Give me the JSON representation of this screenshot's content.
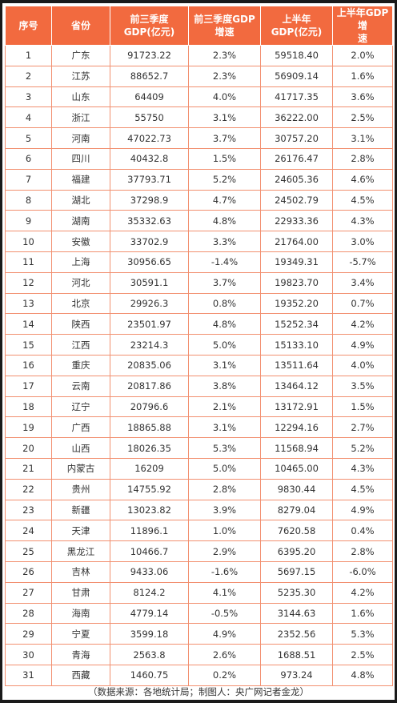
{
  "table": {
    "headers": [
      "序号",
      "省份",
      "前三季度\nGDP(亿元)",
      "前三季度GDP\n增速",
      "上半年\nGDP(亿元)",
      "上半年GDP增\n速"
    ],
    "rows": [
      [
        "1",
        "广东",
        "91723.22",
        "2.3%",
        "59518.40",
        "2.0%"
      ],
      [
        "2",
        "江苏",
        "88652.7",
        "2.3%",
        "56909.14",
        "1.6%"
      ],
      [
        "3",
        "山东",
        "64409",
        "4.0%",
        "41717.35",
        "3.6%"
      ],
      [
        "4",
        "浙江",
        "55750",
        "3.1%",
        "36222.00",
        "2.5%"
      ],
      [
        "5",
        "河南",
        "47022.73",
        "3.7%",
        "30757.20",
        "3.1%"
      ],
      [
        "6",
        "四川",
        "40432.8",
        "1.5%",
        "26176.47",
        "2.8%"
      ],
      [
        "7",
        "福建",
        "37793.71",
        "5.2%",
        "24605.36",
        "4.6%"
      ],
      [
        "8",
        "湖北",
        "37298.9",
        "4.7%",
        "24502.79",
        "4.5%"
      ],
      [
        "9",
        "湖南",
        "35332.63",
        "4.8%",
        "22933.36",
        "4.3%"
      ],
      [
        "10",
        "安徽",
        "33702.9",
        "3.3%",
        "21764.00",
        "3.0%"
      ],
      [
        "11",
        "上海",
        "30956.65",
        "-1.4%",
        "19349.31",
        "-5.7%"
      ],
      [
        "12",
        "河北",
        "30591.1",
        "3.7%",
        "19823.70",
        "3.4%"
      ],
      [
        "13",
        "北京",
        "29926.3",
        "0.8%",
        "19352.20",
        "0.7%"
      ],
      [
        "14",
        "陕西",
        "23501.97",
        "4.8%",
        "15252.34",
        "4.2%"
      ],
      [
        "15",
        "江西",
        "23214.3",
        "5.0%",
        "15133.10",
        "4.9%"
      ],
      [
        "16",
        "重庆",
        "20835.06",
        "3.1%",
        "13511.64",
        "4.0%"
      ],
      [
        "17",
        "云南",
        "20817.86",
        "3.8%",
        "13464.12",
        "3.5%"
      ],
      [
        "18",
        "辽宁",
        "20796.6",
        "2.1%",
        "13172.91",
        "1.5%"
      ],
      [
        "19",
        "广西",
        "18865.88",
        "3.1%",
        "12294.16",
        "2.7%"
      ],
      [
        "20",
        "山西",
        "18026.35",
        "5.3%",
        "11568.94",
        "5.2%"
      ],
      [
        "21",
        "内蒙古",
        "16209",
        "5.0%",
        "10465.00",
        "4.3%"
      ],
      [
        "22",
        "贵州",
        "14755.92",
        "2.8%",
        "9830.44",
        "4.5%"
      ],
      [
        "23",
        "新疆",
        "13023.82",
        "3.9%",
        "8279.04",
        "4.9%"
      ],
      [
        "24",
        "天津",
        "11896.1",
        "1.0%",
        "7620.58",
        "0.4%"
      ],
      [
        "25",
        "黑龙江",
        "10466.7",
        "2.9%",
        "6395.20",
        "2.8%"
      ],
      [
        "26",
        "吉林",
        "9433.06",
        "-1.6%",
        "5697.15",
        "-6.0%"
      ],
      [
        "27",
        "甘肃",
        "8124.2",
        "4.1%",
        "5235.30",
        "4.2%"
      ],
      [
        "28",
        "海南",
        "4779.14",
        "-0.5%",
        "3144.63",
        "1.6%"
      ],
      [
        "29",
        "宁夏",
        "3599.18",
        "4.9%",
        "2352.56",
        "5.3%"
      ],
      [
        "30",
        "青海",
        "2563.8",
        "2.6%",
        "1688.51",
        "2.5%"
      ],
      [
        "31",
        "西藏",
        "1460.75",
        "0.2%",
        "973.24",
        "4.8%"
      ]
    ]
  },
  "footer": "（数据来源：各地统计局；制图人：央广网记者金龙）",
  "colors": {
    "header_bg": "#f26a3f",
    "border": "#f29070",
    "text": "#333333"
  }
}
